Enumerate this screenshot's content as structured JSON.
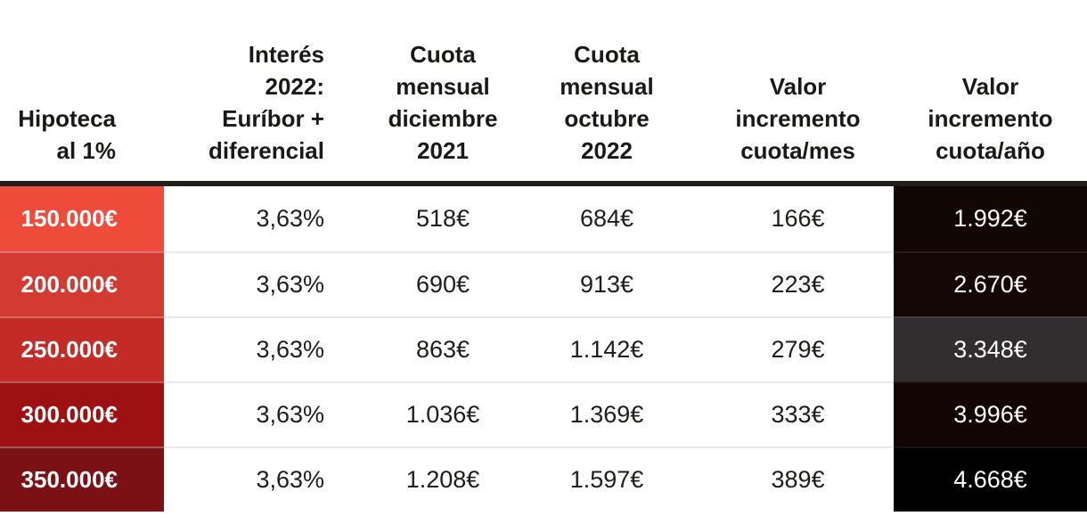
{
  "chart_data": {
    "type": "table",
    "title": "",
    "columns": [
      "Hipoteca al 1%",
      "Interés 2022: Euríbor + diferencial",
      "Cuota mensual diciembre 2021",
      "Cuota mensual octubre 2022",
      "Valor incremento cuota/mes",
      "Valor incremento cuota/año"
    ],
    "rows": [
      [
        "150.000€",
        "3,63%",
        "518€",
        "684€",
        "166€",
        "1.992€"
      ],
      [
        "200.000€",
        "3,63%",
        "690€",
        "913€",
        "223€",
        "2.670€"
      ],
      [
        "250.000€",
        "3,63%",
        "863€",
        "1.142€",
        "279€",
        "3.348€"
      ],
      [
        "300.000€",
        "3,63%",
        "1.036€",
        "1.369€",
        "333€",
        "3.996€"
      ],
      [
        "350.000€",
        "3,63%",
        "1.208€",
        "1.597€",
        "389€",
        "4.668€"
      ]
    ]
  },
  "table": {
    "separator_color": "#241d1e",
    "text_color": "#1d1d1b",
    "headers": [
      {
        "label": "Hipoteca\nal 1%"
      },
      {
        "label": "Interés\n2022:\nEuríbor +\ndiferencial"
      },
      {
        "label": "Cuota\nmensual\ndiciembre\n2021"
      },
      {
        "label": "Cuota\nmensual\noctubre\n2022"
      },
      {
        "label": "Valor\nincremento\ncuota/mes"
      },
      {
        "label": "Valor\nincremento\ncuota/año"
      }
    ],
    "rows": [
      {
        "cells": [
          "150.000€",
          "3,63%",
          "518€",
          "684€",
          "166€",
          "1.992€"
        ],
        "label_bg": "#ee4b3b",
        "year_bg": "#130704"
      },
      {
        "cells": [
          "200.000€",
          "3,63%",
          "690€",
          "913€",
          "223€",
          "2.670€"
        ],
        "label_bg": "#d33a31",
        "year_bg": "#150705"
      },
      {
        "cells": [
          "250.000€",
          "3,63%",
          "863€",
          "1.142€",
          "279€",
          "3.348€"
        ],
        "label_bg": "#c52b26",
        "year_bg": "#322e2f"
      },
      {
        "cells": [
          "300.000€",
          "3,63%",
          "1.036€",
          "1.369€",
          "333€",
          "3.996€"
        ],
        "label_bg": "#9e1113",
        "year_bg": "#120503"
      },
      {
        "cells": [
          "350.000€",
          "3,63%",
          "1.208€",
          "1.597€",
          "389€",
          "4.668€"
        ],
        "label_bg": "#7b1015",
        "year_bg": "#010101"
      }
    ]
  }
}
